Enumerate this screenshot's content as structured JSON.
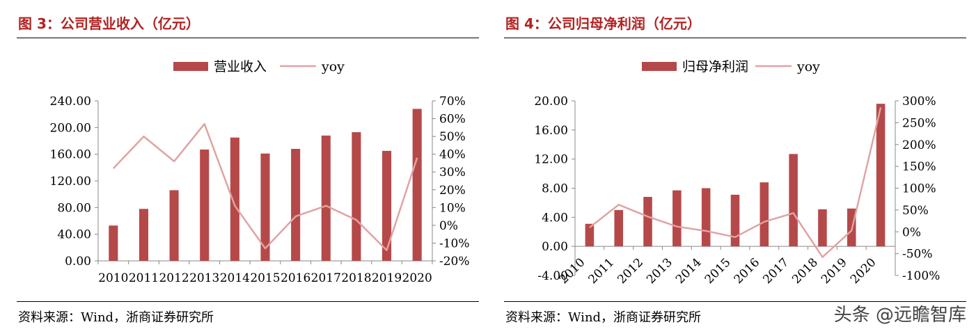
{
  "left": {
    "title": "图 3：公司营业收入（亿元）",
    "source": "资料来源：Wind，浙商证券研究所"
  },
  "right": {
    "title": "图 4：公司归母净利润（亿元）",
    "source": "资料来源：Wind，浙商证券研究所"
  },
  "watermark": "头条 @远瞻智库",
  "colors": {
    "bar": "#b5494a",
    "line": "#e0a3a3",
    "title": "#b22222"
  },
  "chart_data": [
    {
      "type": "bar",
      "categories": [
        "2010",
        "2011",
        "2012",
        "2013",
        "2014",
        "2015",
        "2016",
        "2017",
        "2018",
        "2019",
        "2020"
      ],
      "series": [
        {
          "name": "营业收入",
          "type": "bar",
          "axis": "left",
          "values": [
            53,
            78,
            106,
            167,
            185,
            161,
            168,
            188,
            193,
            165,
            228
          ]
        },
        {
          "name": "yoy",
          "type": "line",
          "axis": "right",
          "values": [
            32,
            50,
            36,
            57,
            11,
            -13,
            5,
            11,
            3,
            -14,
            38
          ]
        }
      ],
      "ylim_left": [
        0,
        240
      ],
      "yticks_left": [
        "0.00",
        "40.00",
        "80.00",
        "120.00",
        "160.00",
        "200.00",
        "240.00"
      ],
      "ylim_right": [
        -20,
        70
      ],
      "yticks_right": [
        "-20%",
        "-10%",
        "0%",
        "10%",
        "20%",
        "30%",
        "40%",
        "50%",
        "60%",
        "70%"
      ],
      "legend": "top-center",
      "grid": false
    },
    {
      "type": "bar",
      "categories": [
        "2010",
        "2011",
        "2012",
        "2013",
        "2014",
        "2015",
        "2016",
        "2017",
        "2018",
        "2019",
        "2020"
      ],
      "series": [
        {
          "name": "归母净利润",
          "type": "bar",
          "axis": "left",
          "values": [
            3.1,
            5.0,
            6.8,
            7.7,
            8.0,
            7.1,
            8.8,
            12.7,
            5.1,
            5.2,
            19.6
          ]
        },
        {
          "name": "yoy",
          "type": "line",
          "axis": "right",
          "values": [
            10,
            62,
            35,
            12,
            2,
            -12,
            23,
            43,
            -58,
            3,
            285
          ]
        }
      ],
      "ylim_left": [
        -4,
        20
      ],
      "yticks_left": [
        "-4.00",
        "0.00",
        "4.00",
        "8.00",
        "12.00",
        "16.00",
        "20.00"
      ],
      "ylim_right": [
        -100,
        300
      ],
      "yticks_right": [
        "-100%",
        "-50%",
        "0%",
        "50%",
        "100%",
        "150%",
        "200%",
        "250%",
        "300%"
      ],
      "legend": "top-center",
      "grid": false
    }
  ]
}
